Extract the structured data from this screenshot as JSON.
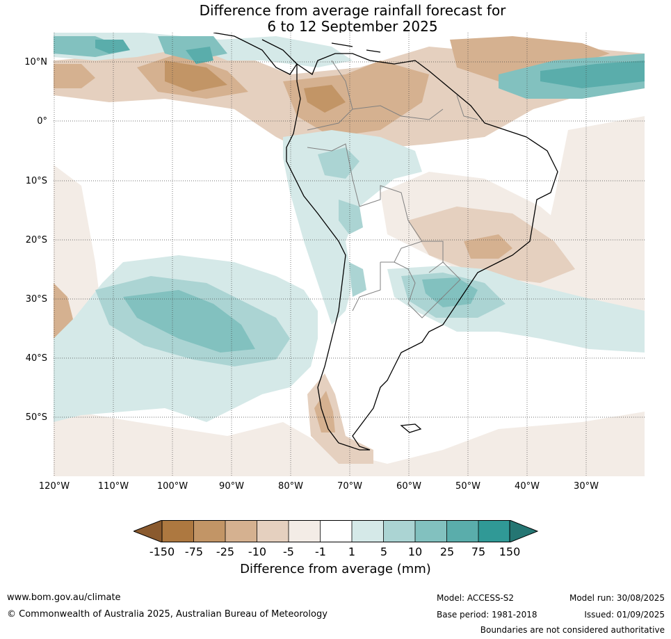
{
  "title": {
    "line1": "Difference from average rainfall forecast for",
    "line2": "6 to 12 September 2025"
  },
  "map": {
    "lat_labels": [
      "10°N",
      "0°",
      "10°S",
      "20°S",
      "30°S",
      "40°S",
      "50°S"
    ],
    "lon_labels": [
      "120°W",
      "110°W",
      "100°W",
      "90°W",
      "80°W",
      "70°W",
      "60°W",
      "50°W",
      "40°W",
      "30°W"
    ],
    "colors": {
      "very_dry": "#8a5a2e",
      "dry_150": "#ad7840",
      "dry_75": "#c29566",
      "dry_25": "#d5b190",
      "dry_10": "#e5d0bf",
      "dry_5": "#f3ece6",
      "neutral": "#ffffff",
      "wet_1": "#d5e9e8",
      "wet_5": "#abd4d3",
      "wet_10": "#82c1bf",
      "wet_25": "#5aadab",
      "wet_75": "#309996",
      "very_wet": "#257673",
      "coastline": "#000000",
      "borders": "#808080"
    }
  },
  "colorbar": {
    "ticks": [
      "-150",
      "-75",
      "-25",
      "-10",
      "-5",
      "-1",
      "1",
      "5",
      "10",
      "25",
      "75",
      "150"
    ],
    "label": "Difference from average (mm)"
  },
  "footer": {
    "website": "www.bom.gov.au/climate",
    "copyright": "© Commonwealth of Australia 2025, Australian Bureau of Meteorology",
    "model": "Model: ACCESS-S2",
    "base_period": "Base period: 1981-2018",
    "model_run": "Model run: 30/08/2025",
    "issued": "Issued: 01/09/2025",
    "disclaimer": "Boundaries are not considered authoritative"
  }
}
